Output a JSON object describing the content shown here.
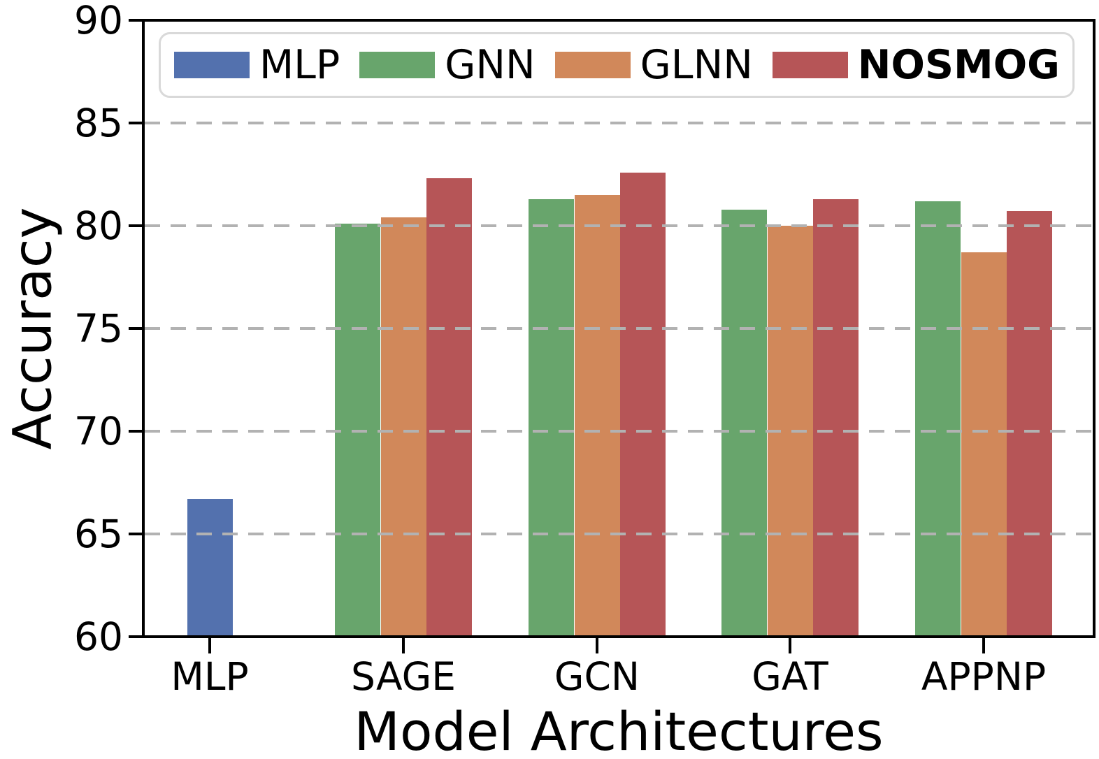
{
  "chart_data": {
    "type": "bar",
    "title": "",
    "xlabel": "Model Architectures",
    "ylabel": "Accuracy",
    "ylim": [
      60,
      90
    ],
    "yticks": [
      60,
      65,
      70,
      75,
      80,
      85,
      90
    ],
    "gridlines": [
      65,
      70,
      75,
      80,
      85
    ],
    "grid_style": "dashed",
    "legend_position": "top",
    "categories": [
      "MLP",
      "SAGE",
      "GCN",
      "GAT",
      "APPNP"
    ],
    "series": [
      {
        "name": "MLP",
        "color": "#5371ae",
        "bold": false,
        "values": [
          66.7,
          null,
          null,
          null,
          null
        ]
      },
      {
        "name": "GNN",
        "color": "#68a56c",
        "bold": false,
        "values": [
          null,
          80.1,
          81.3,
          80.8,
          81.2
        ]
      },
      {
        "name": "GLNN",
        "color": "#d1885a",
        "bold": false,
        "values": [
          null,
          80.4,
          81.5,
          80.0,
          78.7
        ]
      },
      {
        "name": "NOSMOG",
        "color": "#b65557",
        "bold": true,
        "values": [
          null,
          82.3,
          82.6,
          81.3,
          80.7
        ]
      }
    ]
  },
  "colors": {
    "gridline": "#b2b2b2",
    "spine": "#000000",
    "legend_border": "#d9d9d9",
    "background": "#ffffff"
  }
}
